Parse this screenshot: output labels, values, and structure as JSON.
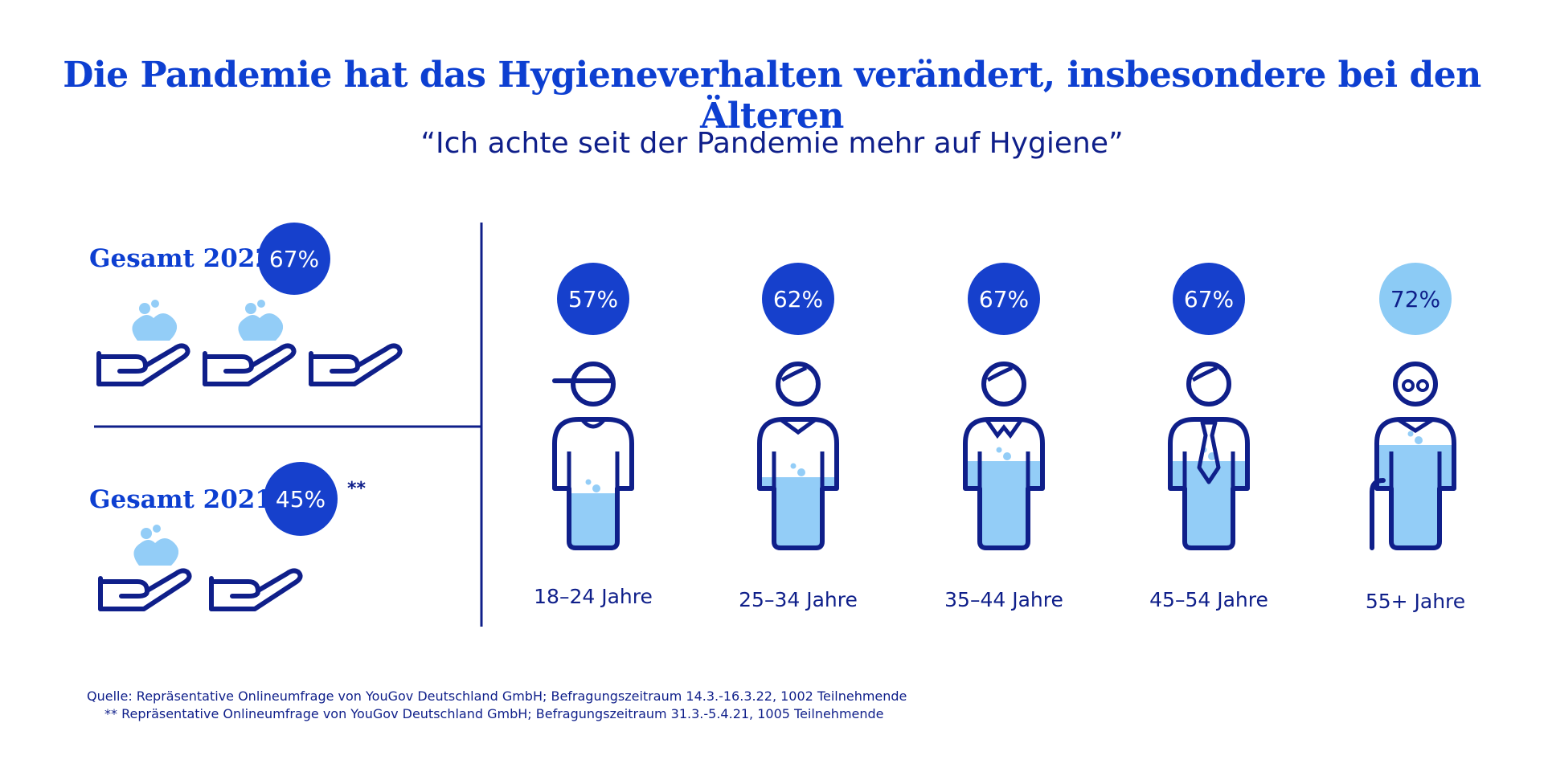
{
  "title": "Die Pandemie hat das Hygieneverhalten verändert, insbesondere bei den Älteren",
  "subtitle": "“Ich achte seit der Pandemie mehr auf Hygiene”",
  "totals": {
    "y2022": {
      "label": "Gesamt 2022:",
      "value": "67%",
      "filled_hands": 2,
      "total_hands": 3
    },
    "y2021": {
      "label": "Gesamt 2021:",
      "value": "45%",
      "filled_hands": 1,
      "total_hands": 2,
      "note_marker": "**"
    }
  },
  "colors": {
    "dark_blue": "#0f1f8a",
    "bright_blue": "#0d3fd1",
    "medium_blue": "#1640cc",
    "light_blue": "#8ccbf5",
    "icon_fill": "#93cdf7"
  },
  "icons": [
    "person-cap-icon",
    "person-collar-icon",
    "person-vneck-icon",
    "person-tie-icon",
    "person-elderly-cane-icon",
    "soap-hand-icon",
    "empty-hand-icon"
  ],
  "chart_data": {
    "type": "bar",
    "categories": [
      "18–24 Jahre",
      "25–34 Jahre",
      "35–44 Jahre",
      "45–54 Jahre",
      "55+ Jahre"
    ],
    "values": [
      57,
      62,
      67,
      67,
      72
    ],
    "value_labels": [
      "57%",
      "62%",
      "67%",
      "67%",
      "72%"
    ],
    "unit": "%",
    "ylim": [
      0,
      100
    ]
  },
  "sources": {
    "line1": "Quelle: Repräsentative Onlineumfrage von YouGov Deutschland GmbH; Befragungszeitraum 14.3.-16.3.22, 1002 Teilnehmende",
    "line2": "**  Repräsentative Onlineumfrage von YouGov Deutschland GmbH; Befragungszeitraum 31.3.-5.4.21, 1005 Teilnehmende"
  }
}
